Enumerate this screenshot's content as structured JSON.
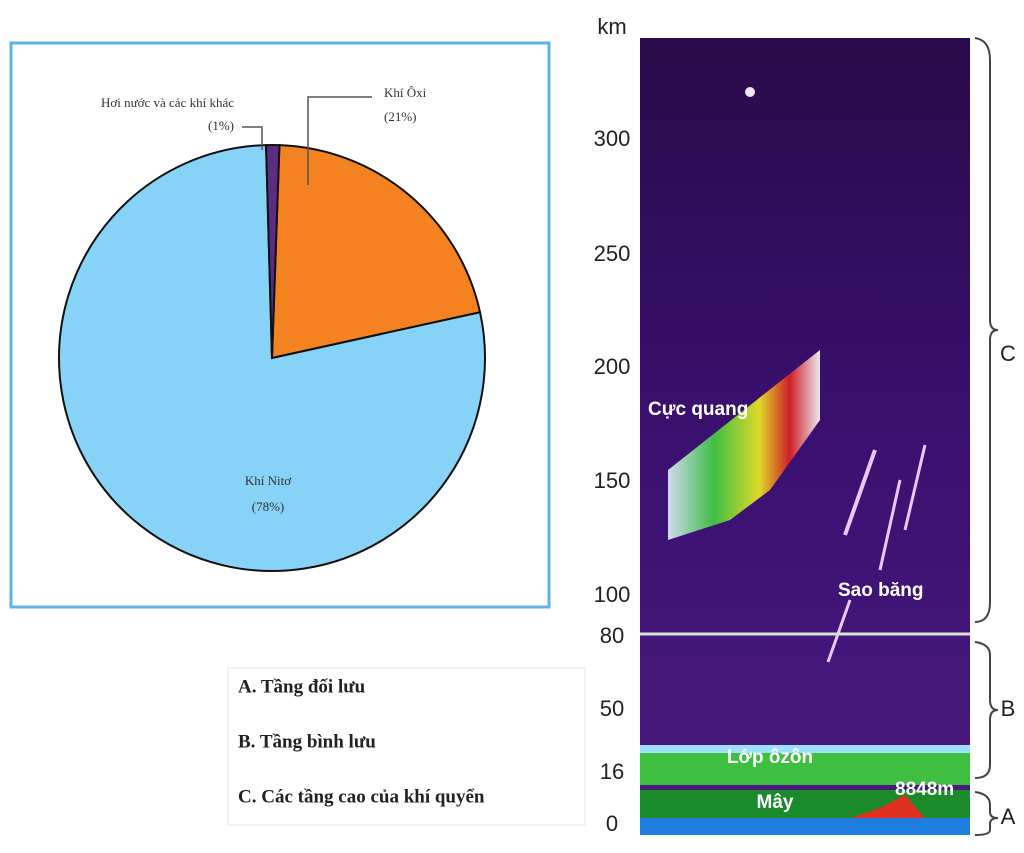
{
  "chart_data": {
    "type": "pie",
    "categories": [
      "Khí Ôxi",
      "Khí Nitơ",
      "Hơi nước và các khí khác"
    ],
    "values": [
      21,
      78,
      1
    ],
    "value_labels": [
      "(21%)",
      "(78%)",
      "(1%)"
    ],
    "colors": [
      "#f58220",
      "#87d3f8",
      "#5a2d82"
    ]
  },
  "diagram": {
    "axis_labels": [
      "km",
      "300",
      "250",
      "200",
      "150",
      "100",
      "80",
      "50",
      "16",
      "0"
    ],
    "features": [
      "Cực quang",
      "Sao băng",
      "Lớp ôzôn",
      "Mây",
      "8848m"
    ],
    "layers": [
      "A",
      "B",
      "C"
    ],
    "legend": [
      "A. Tầng đối lưu",
      "B. Tầng bình lưu",
      "C. Các tầng cao của khí quyển"
    ]
  }
}
